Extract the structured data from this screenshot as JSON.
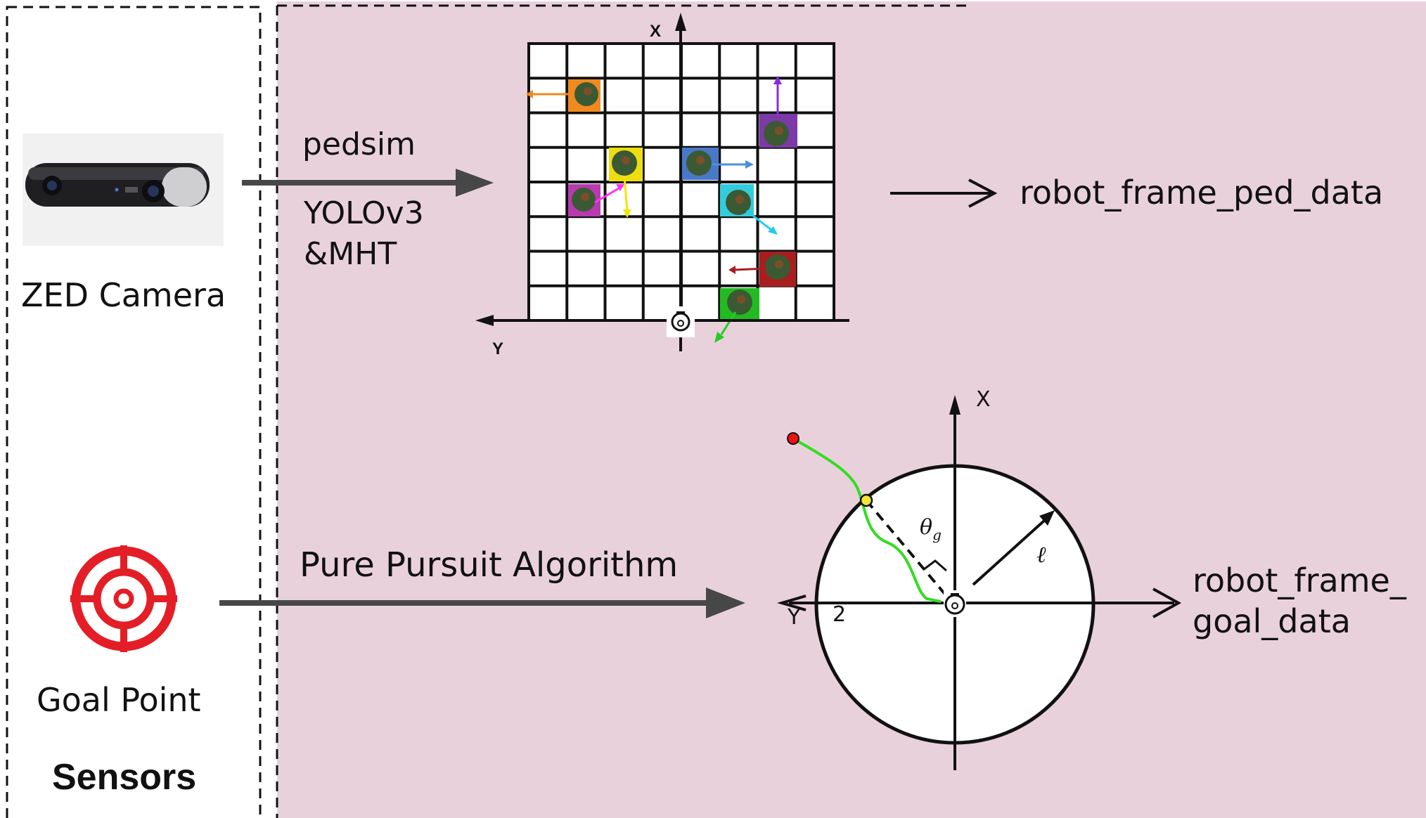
{
  "sensors_panel": {
    "camera_label": "ZED Camera",
    "goal_label": "Goal Point",
    "title": "Sensors"
  },
  "top_pipeline": {
    "label_pedsim": "pedsim",
    "label_yolo": "YOLOv3",
    "label_mht": "&MHT",
    "grid_axis_x": "X",
    "grid_axis_y": "Y",
    "output_label": "robot_frame_ped_data"
  },
  "bottom_pipeline": {
    "label_algorithm": "Pure Pursuit Algorithm",
    "axis_x": "X",
    "axis_y": "Y",
    "axis_tick": "2",
    "angle_symbol": "θ",
    "angle_subscript": "g",
    "lookahead_symbol": "ℓ",
    "output_label_line1": "robot_frame_",
    "output_label_line2": "goal_data"
  },
  "colors": {
    "panel_bg": "#e9d1dc",
    "path_green": "#33dd22",
    "goal_red": "#ee1111",
    "lookahead_yellow": "#f2e633",
    "target_red": "#e41e26"
  }
}
